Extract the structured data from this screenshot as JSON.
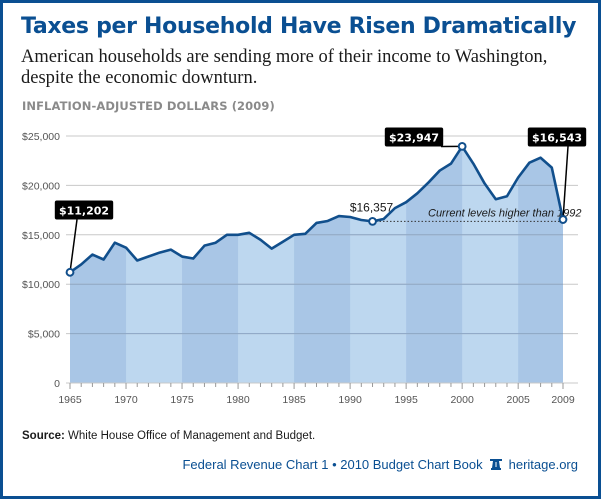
{
  "header": {
    "title": "Taxes per Household Have Risen Dramatically",
    "subtitle": "American households are sending more of their income to Washington, despite the economic downturn.",
    "units_label": "INFLATION-ADJUSTED DOLLARS (2009)"
  },
  "footer": {
    "source_label": "Source:",
    "source_text": " White House Office of Management and Budget.",
    "credit_text": "Federal Revenue Chart 1 • 2010 Budget Chart Book",
    "credit_icon": "liberty-bell-icon",
    "site": "heritage.org"
  },
  "colors": {
    "brand_blue": "#0a4f92",
    "line": "#114f8c",
    "band_dark": "#a9c6e6",
    "band_light": "#bdd7ef",
    "callout_bg": "#000000"
  },
  "chart_data": {
    "type": "area",
    "title": "Taxes per Household Have Risen Dramatically",
    "xlabel": "",
    "ylabel": "Inflation-adjusted dollars (2009)",
    "xlim": [
      1965,
      2009
    ],
    "ylim": [
      0,
      25000
    ],
    "grid": true,
    "y_ticks": [
      0,
      5000,
      10000,
      15000,
      20000,
      25000
    ],
    "y_tick_labels": [
      "0",
      "$5,000",
      "$10,000",
      "$15,000",
      "$20,000",
      "$25,000"
    ],
    "x_ticks": [
      1965,
      1970,
      1975,
      1980,
      1985,
      1990,
      1995,
      2000,
      2005,
      2009
    ],
    "x_tick_labels": [
      "1965",
      "1970",
      "1975",
      "1980",
      "1985",
      "1990",
      "1995",
      "2000",
      "2005",
      "2009"
    ],
    "series": [
      {
        "name": "Taxes per household",
        "x": [
          1965,
          1966,
          1967,
          1968,
          1969,
          1970,
          1971,
          1972,
          1973,
          1974,
          1975,
          1976,
          1977,
          1978,
          1979,
          1980,
          1981,
          1982,
          1983,
          1984,
          1985,
          1986,
          1987,
          1988,
          1989,
          1990,
          1991,
          1992,
          1993,
          1994,
          1995,
          1996,
          1997,
          1998,
          1999,
          2000,
          2001,
          2002,
          2003,
          2004,
          2005,
          2006,
          2007,
          2008,
          2009
        ],
        "values": [
          11202,
          12000,
          13000,
          12500,
          14200,
          13700,
          12400,
          12800,
          13200,
          13500,
          12800,
          12600,
          13900,
          14200,
          15000,
          15000,
          15200,
          14500,
          13600,
          14300,
          15000,
          15100,
          16200,
          16400,
          16900,
          16800,
          16500,
          16357,
          16600,
          17700,
          18300,
          19200,
          20300,
          21500,
          22200,
          23947,
          22200,
          20200,
          18600,
          18900,
          20800,
          22300,
          22800,
          21800,
          16543
        ]
      }
    ],
    "callouts": [
      {
        "year": 1965,
        "value": 11202,
        "label": "$11,202",
        "style": "box"
      },
      {
        "year": 1992,
        "value": 16357,
        "label": "$16,357",
        "style": "plain"
      },
      {
        "year": 2000,
        "value": 23947,
        "label": "$23,947",
        "style": "box"
      },
      {
        "year": 2009,
        "value": 16543,
        "label": "$16,543",
        "style": "box"
      }
    ],
    "reference_line": {
      "from_year": 1992,
      "to_year": 2009,
      "value": 16357,
      "style": "dotted"
    },
    "annotation": "Current levels higher than 1992",
    "shaded_bands": [
      [
        1965,
        1970
      ],
      [
        1975,
        1980
      ],
      [
        1985,
        1990
      ],
      [
        1995,
        2000
      ],
      [
        2005,
        2009
      ]
    ]
  }
}
